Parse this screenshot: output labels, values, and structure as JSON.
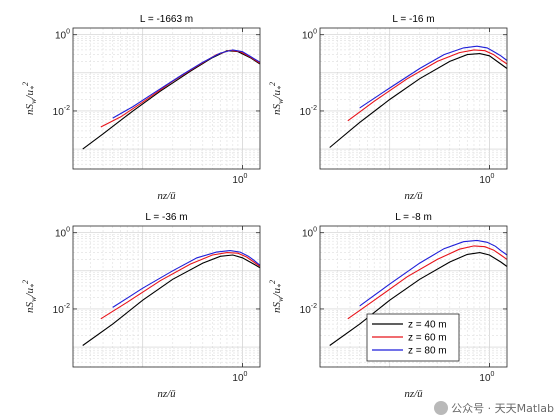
{
  "chart_data": [
    {
      "type": "line",
      "title": "L = -1663 m",
      "xlabel": "nz/ū",
      "ylabel": "nS_w/u_*^2",
      "xscale": "log",
      "yscale": "log",
      "xlim": [
        0.02,
        1.5
      ],
      "ylim": [
        0.0003,
        1.5
      ],
      "xticklabels": [
        "10^0"
      ],
      "yticklabels": [
        "10^0",
        "10^-2"
      ],
      "grid": true,
      "series": [
        {
          "name": "z = 40 m",
          "color": "#000000",
          "x": [
            0.025,
            0.04,
            0.08,
            0.15,
            0.3,
            0.5,
            0.7,
            0.9,
            1.2,
            1.5
          ],
          "y": [
            0.001,
            0.0025,
            0.01,
            0.033,
            0.11,
            0.25,
            0.38,
            0.36,
            0.25,
            0.17
          ]
        },
        {
          "name": "z = 60 m",
          "color": "#e8141b",
          "x": [
            0.038,
            0.06,
            0.1,
            0.2,
            0.35,
            0.55,
            0.75,
            0.95,
            1.2,
            1.5
          ],
          "y": [
            0.0038,
            0.007,
            0.017,
            0.06,
            0.15,
            0.3,
            0.39,
            0.36,
            0.26,
            0.18
          ]
        },
        {
          "name": "z = 80 m",
          "color": "#1f1fd9",
          "x": [
            0.05,
            0.08,
            0.13,
            0.25,
            0.4,
            0.6,
            0.8,
            1.0,
            1.2,
            1.5
          ],
          "y": [
            0.0065,
            0.013,
            0.03,
            0.09,
            0.19,
            0.33,
            0.4,
            0.36,
            0.27,
            0.19
          ]
        }
      ]
    },
    {
      "type": "line",
      "title": "L = -16 m",
      "xlabel": "nz/ū",
      "ylabel": "nS_w/u_*^2",
      "xscale": "log",
      "yscale": "log",
      "xlim": [
        0.02,
        1.5
      ],
      "ylim": [
        0.0003,
        1.5
      ],
      "xticklabels": [
        "10^0"
      ],
      "yticklabels": [
        "10^0",
        "10^-2"
      ],
      "grid": true,
      "series": [
        {
          "name": "z = 40 m",
          "color": "#000000",
          "x": [
            0.025,
            0.05,
            0.1,
            0.2,
            0.4,
            0.6,
            0.8,
            1.0,
            1.3,
            1.5
          ],
          "y": [
            0.0011,
            0.005,
            0.02,
            0.07,
            0.2,
            0.3,
            0.32,
            0.28,
            0.17,
            0.13
          ]
        },
        {
          "name": "z = 60 m",
          "color": "#e8141b",
          "x": [
            0.038,
            0.07,
            0.15,
            0.3,
            0.5,
            0.7,
            0.9,
            1.1,
            1.3,
            1.5
          ],
          "y": [
            0.0055,
            0.018,
            0.07,
            0.2,
            0.34,
            0.4,
            0.38,
            0.3,
            0.22,
            0.17
          ]
        },
        {
          "name": "z = 80 m",
          "color": "#1f1fd9",
          "x": [
            0.05,
            0.1,
            0.2,
            0.35,
            0.55,
            0.75,
            0.95,
            1.15,
            1.3,
            1.5
          ],
          "y": [
            0.012,
            0.04,
            0.13,
            0.3,
            0.45,
            0.5,
            0.45,
            0.34,
            0.28,
            0.21
          ]
        }
      ]
    },
    {
      "type": "line",
      "title": "L = -36 m",
      "xlabel": "nz/ū",
      "ylabel": "nS_w/u_*^2",
      "xscale": "log",
      "yscale": "log",
      "xlim": [
        0.02,
        1.5
      ],
      "ylim": [
        0.0003,
        1.5
      ],
      "xticklabels": [
        "10^0"
      ],
      "yticklabels": [
        "10^0",
        "10^-2"
      ],
      "grid": true,
      "series": [
        {
          "name": "z = 40 m",
          "color": "#000000",
          "x": [
            0.025,
            0.05,
            0.1,
            0.2,
            0.4,
            0.6,
            0.8,
            1.0,
            1.3,
            1.5
          ],
          "y": [
            0.0011,
            0.004,
            0.017,
            0.06,
            0.16,
            0.24,
            0.26,
            0.22,
            0.15,
            0.12
          ]
        },
        {
          "name": "z = 60 m",
          "color": "#e8141b",
          "x": [
            0.038,
            0.07,
            0.15,
            0.3,
            0.5,
            0.7,
            0.9,
            1.1,
            1.3,
            1.5
          ],
          "y": [
            0.0055,
            0.015,
            0.055,
            0.15,
            0.26,
            0.3,
            0.29,
            0.23,
            0.17,
            0.13
          ]
        },
        {
          "name": "z = 80 m",
          "color": "#1f1fd9",
          "x": [
            0.05,
            0.1,
            0.2,
            0.35,
            0.55,
            0.75,
            0.95,
            1.15,
            1.3,
            1.5
          ],
          "y": [
            0.011,
            0.035,
            0.1,
            0.22,
            0.31,
            0.34,
            0.31,
            0.24,
            0.19,
            0.14
          ]
        }
      ]
    },
    {
      "type": "line",
      "title": "L = -8 m",
      "xlabel": "nz/ū",
      "ylabel": "nS_w/u_*^2",
      "xscale": "log",
      "yscale": "log",
      "xlim": [
        0.02,
        1.5
      ],
      "ylim": [
        0.0003,
        1.5
      ],
      "xticklabels": [
        "10^0"
      ],
      "yticklabels": [
        "10^0",
        "10^-2"
      ],
      "grid": true,
      "legend": "lower-right",
      "series": [
        {
          "name": "z = 40 m",
          "color": "#000000",
          "x": [
            0.025,
            0.05,
            0.1,
            0.2,
            0.4,
            0.6,
            0.8,
            1.0,
            1.3,
            1.5
          ],
          "y": [
            0.0011,
            0.004,
            0.017,
            0.06,
            0.17,
            0.27,
            0.3,
            0.26,
            0.17,
            0.13
          ]
        },
        {
          "name": "z = 60 m",
          "color": "#e8141b",
          "x": [
            0.038,
            0.07,
            0.15,
            0.3,
            0.5,
            0.7,
            0.9,
            1.1,
            1.3,
            1.5
          ],
          "y": [
            0.0055,
            0.017,
            0.07,
            0.2,
            0.37,
            0.45,
            0.43,
            0.35,
            0.26,
            0.2
          ]
        },
        {
          "name": "z = 80 m",
          "color": "#1f1fd9",
          "x": [
            0.05,
            0.1,
            0.2,
            0.35,
            0.55,
            0.75,
            0.95,
            1.15,
            1.3,
            1.5
          ],
          "y": [
            0.012,
            0.045,
            0.16,
            0.38,
            0.58,
            0.63,
            0.56,
            0.44,
            0.34,
            0.26
          ]
        }
      ]
    }
  ],
  "watermark": {
    "icon": "wechat-icon",
    "text": "公众号 · 天天Matlab"
  }
}
